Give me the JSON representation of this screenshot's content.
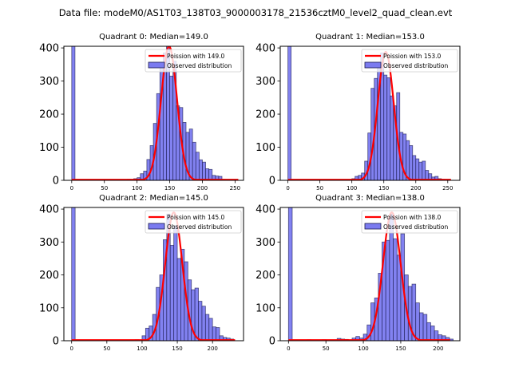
{
  "suptitle": "Data file: modeM0/AS1T03_138T03_9000003178_21536cztM0_level2_quad_clean.evt",
  "colors": {
    "bar_fill": "#7b7bf0",
    "bar_edge": "#1a1a4d",
    "poisson_line": "#ff0000"
  },
  "chart_data": [
    {
      "type": "bar",
      "title": "Quadrant 0: Median=149.0",
      "legend": [
        "Poission with 149.0",
        "Observed distribution"
      ],
      "legend_position": "top-right",
      "median": 149.0,
      "bin_width": 5,
      "xlim": [
        -12,
        263
      ],
      "ylim": [
        0,
        405
      ],
      "xticks": [
        0,
        50,
        100,
        150,
        200,
        250
      ],
      "yticks": [
        0,
        100,
        200,
        300,
        400
      ],
      "bins": [
        0,
        85,
        90,
        95,
        100,
        105,
        110,
        115,
        120,
        125,
        130,
        135,
        140,
        145,
        150,
        155,
        160,
        165,
        170,
        175,
        180,
        185,
        190,
        195,
        200,
        205,
        210,
        215,
        220,
        225,
        230,
        235
      ],
      "counts": [
        420,
        3,
        2,
        5,
        8,
        20,
        28,
        63,
        105,
        172,
        262,
        345,
        385,
        405,
        315,
        360,
        225,
        220,
        175,
        145,
        155,
        115,
        85,
        62,
        55,
        35,
        33,
        15,
        13,
        12,
        3,
        2
      ],
      "poisson_peak": 405,
      "poisson_range": [
        0,
        255
      ]
    },
    {
      "type": "bar",
      "title": "Quadrant 1: Median=153.0",
      "legend": [
        "Poission with 153.0",
        "Observed distribution"
      ],
      "legend_position": "top-right",
      "median": 153.0,
      "bin_width": 5,
      "xlim": [
        -12,
        269
      ],
      "ylim": [
        0,
        405
      ],
      "xticks": [
        0,
        50,
        100,
        150,
        200,
        250
      ],
      "yticks": [
        0,
        100,
        200,
        300,
        400
      ],
      "bins": [
        0,
        100,
        105,
        110,
        115,
        120,
        125,
        130,
        135,
        140,
        145,
        150,
        155,
        160,
        165,
        170,
        175,
        180,
        185,
        190,
        195,
        200,
        205,
        210,
        215,
        220,
        225,
        230,
        235,
        240
      ],
      "counts": [
        420,
        5,
        12,
        15,
        22,
        58,
        143,
        278,
        308,
        350,
        385,
        318,
        310,
        255,
        225,
        265,
        145,
        140,
        120,
        105,
        75,
        65,
        55,
        58,
        30,
        20,
        10,
        12,
        5,
        3
      ],
      "poisson_peak": 388,
      "poisson_range": [
        0,
        255
      ]
    },
    {
      "type": "bar",
      "title": "Quadrant 2: Median=145.0",
      "legend": [
        "Poission with 145.0",
        "Observed distribution"
      ],
      "legend_position": "top-right",
      "median": 145.0,
      "bin_width": 5,
      "xlim": [
        -11,
        244
      ],
      "ylim": [
        0,
        405
      ],
      "xticks": [
        0,
        50,
        100,
        150,
        200
      ],
      "yticks": [
        0,
        100,
        200,
        300,
        400
      ],
      "bins": [
        0,
        90,
        95,
        100,
        105,
        110,
        115,
        120,
        125,
        130,
        135,
        140,
        145,
        150,
        155,
        160,
        165,
        170,
        175,
        180,
        185,
        190,
        195,
        200,
        205,
        210,
        215,
        220,
        225
      ],
      "counts": [
        420,
        3,
        2,
        15,
        38,
        45,
        80,
        162,
        200,
        307,
        385,
        290,
        350,
        250,
        278,
        240,
        185,
        155,
        160,
        120,
        105,
        80,
        68,
        42,
        40,
        15,
        10,
        8,
        5
      ],
      "poisson_peak": 390,
      "poisson_range": [
        0,
        232
      ]
    },
    {
      "type": "bar",
      "title": "Quadrant 3: Median=138.0",
      "legend": [
        "Poission with 138.0",
        "Observed distribution"
      ],
      "legend_position": "top-right",
      "median": 138.0,
      "bin_width": 5,
      "xlim": [
        -11,
        229
      ],
      "ylim": [
        0,
        405
      ],
      "xticks": [
        0,
        50,
        100,
        150,
        200
      ],
      "yticks": [
        0,
        100,
        200,
        300,
        400
      ],
      "bins": [
        0,
        5,
        15,
        25,
        35,
        45,
        55,
        65,
        70,
        75,
        85,
        90,
        95,
        100,
        105,
        110,
        115,
        120,
        125,
        130,
        135,
        140,
        145,
        150,
        155,
        160,
        165,
        170,
        175,
        180,
        185,
        190,
        195,
        200,
        205,
        210,
        215
      ],
      "counts": [
        420,
        2,
        2,
        3,
        2,
        3,
        2,
        7,
        5,
        4,
        8,
        13,
        8,
        20,
        48,
        115,
        130,
        205,
        300,
        305,
        385,
        310,
        260,
        325,
        200,
        165,
        172,
        115,
        85,
        80,
        55,
        45,
        30,
        18,
        15,
        10,
        5
      ],
      "poisson_peak": 390,
      "poisson_range": [
        0,
        216
      ]
    }
  ]
}
